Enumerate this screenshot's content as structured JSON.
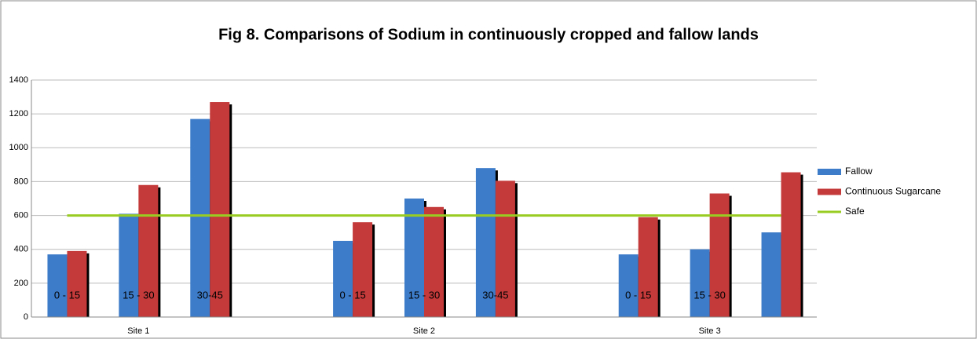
{
  "chart_data": {
    "type": "bar",
    "title": "Fig 8. Comparisons of Sodium in continuously cropped and fallow lands",
    "categories": [
      "0 - 15",
      "15 - 30",
      "30-45",
      null,
      "0 - 15",
      "15 - 30",
      "30-45",
      null,
      "0 - 15",
      "15 - 30",
      null
    ],
    "groups": [
      "Site 1",
      "Site 2",
      "Site 3"
    ],
    "series": [
      {
        "name": "Fallow",
        "type": "bar",
        "color": "#3d7cc9",
        "values": [
          370,
          610,
          1170,
          null,
          450,
          700,
          880,
          null,
          370,
          400,
          500
        ]
      },
      {
        "name": "Continuous Sugarcane",
        "type": "bar",
        "color": "#c43a3a",
        "values": [
          390,
          780,
          1270,
          null,
          560,
          650,
          805,
          null,
          590,
          730,
          855
        ]
      },
      {
        "name": "Safe",
        "type": "line",
        "color": "#99cc22",
        "values": [
          600,
          600,
          600,
          600,
          600,
          600,
          600,
          600,
          600,
          600,
          600
        ]
      }
    ],
    "ylim": [
      0,
      1400
    ],
    "yticks": [
      0,
      200,
      400,
      600,
      800,
      1000,
      1200,
      1400
    ],
    "grid": true,
    "legend": "right"
  }
}
